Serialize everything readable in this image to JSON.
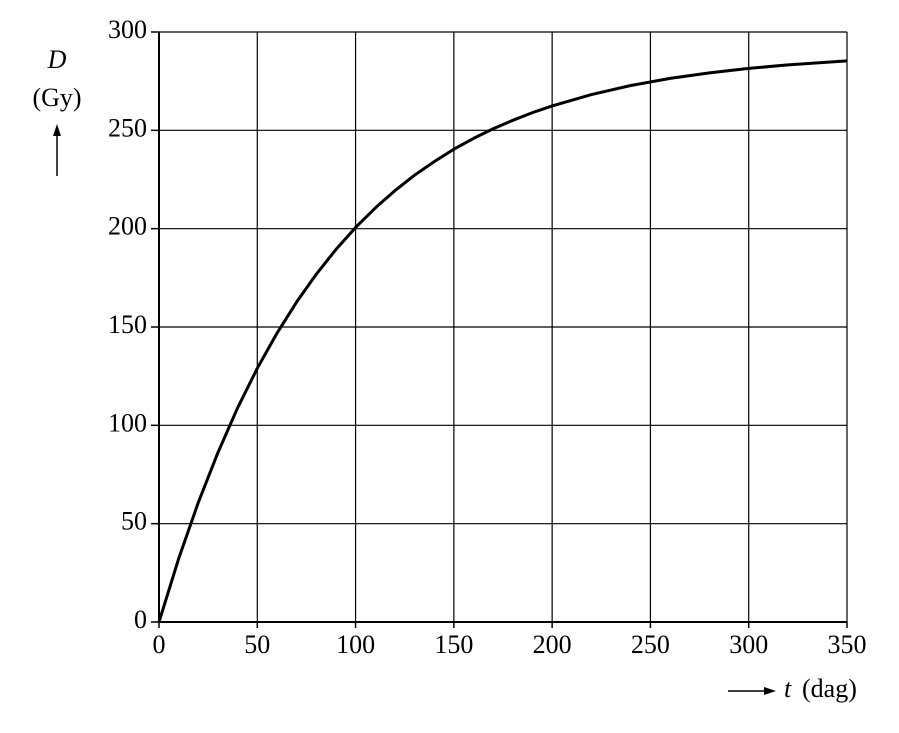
{
  "chart_data": {
    "type": "line",
    "y_label": "D",
    "y_unit": "(Gy)",
    "x_label": "t",
    "x_unit": "(dag)",
    "x": [
      0,
      10,
      20,
      30,
      40,
      50,
      60,
      70,
      80,
      90,
      100,
      110,
      120,
      130,
      140,
      150,
      160,
      170,
      180,
      190,
      200,
      220,
      240,
      260,
      280,
      300,
      320,
      350
    ],
    "values": [
      0,
      32.2,
      60.8,
      86.2,
      108.9,
      129.0,
      146.8,
      162.7,
      176.8,
      189.4,
      200.6,
      210.5,
      219.3,
      227.2,
      234.1,
      240.4,
      245.9,
      250.8,
      255.1,
      259.0,
      262.4,
      268.2,
      272.8,
      276.4,
      279.2,
      281.5,
      283.3,
      285.3
    ],
    "color": "#000000",
    "xlim": [
      0,
      350
    ],
    "xticks": [
      0,
      50,
      100,
      150,
      200,
      250,
      300,
      350
    ],
    "ylim": [
      0,
      300
    ],
    "yticks": [
      0,
      50,
      100,
      150,
      200,
      250,
      300
    ],
    "grid": true
  }
}
